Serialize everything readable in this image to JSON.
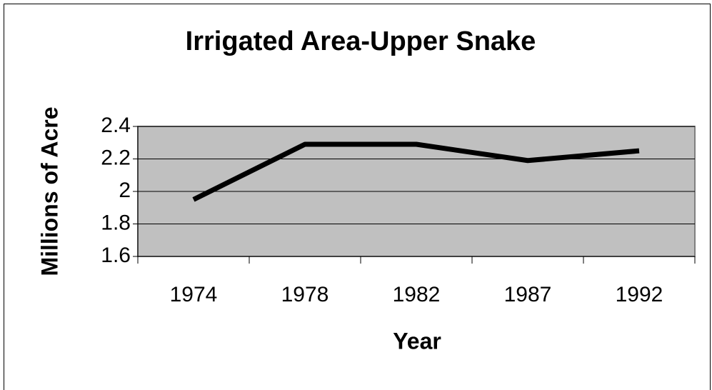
{
  "chart_data": {
    "type": "line",
    "title": "Irrigated Area-Upper Snake",
    "x_label": "Year",
    "y_label": "Millions of Acre",
    "categories": [
      "1974",
      "1978",
      "1982",
      "1987",
      "1992"
    ],
    "values": [
      1.95,
      2.29,
      2.29,
      2.19,
      2.25
    ],
    "color": "#000000",
    "ylim": [
      1.6,
      2.4
    ],
    "yticks": [
      1.6,
      1.8,
      2,
      2.2,
      2.4
    ],
    "grid": true
  }
}
